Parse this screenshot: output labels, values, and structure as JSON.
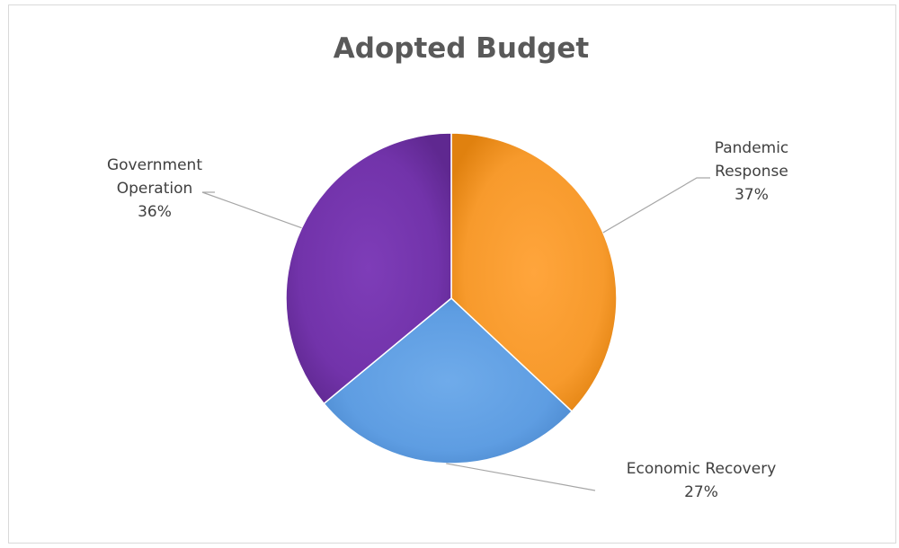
{
  "chart_data": {
    "type": "pie",
    "title": "Adopted Budget",
    "categories": [
      "Pandemic Response",
      "Economic Recovery",
      "Government Operation"
    ],
    "values": [
      37,
      27,
      36
    ],
    "unit": "%",
    "colors": [
      "#f5921e",
      "#5b9be0",
      "#7135a8"
    ],
    "start": "12 o'clock",
    "direction": "clockwise",
    "legend": "none",
    "labels": [
      {
        "lines": [
          "Pandemic",
          "Response"
        ],
        "percent": "37%"
      },
      {
        "lines": [
          "Economic Recovery"
        ],
        "percent": "27%"
      },
      {
        "lines": [
          "Government",
          "Operation"
        ],
        "percent": "36%"
      }
    ]
  }
}
